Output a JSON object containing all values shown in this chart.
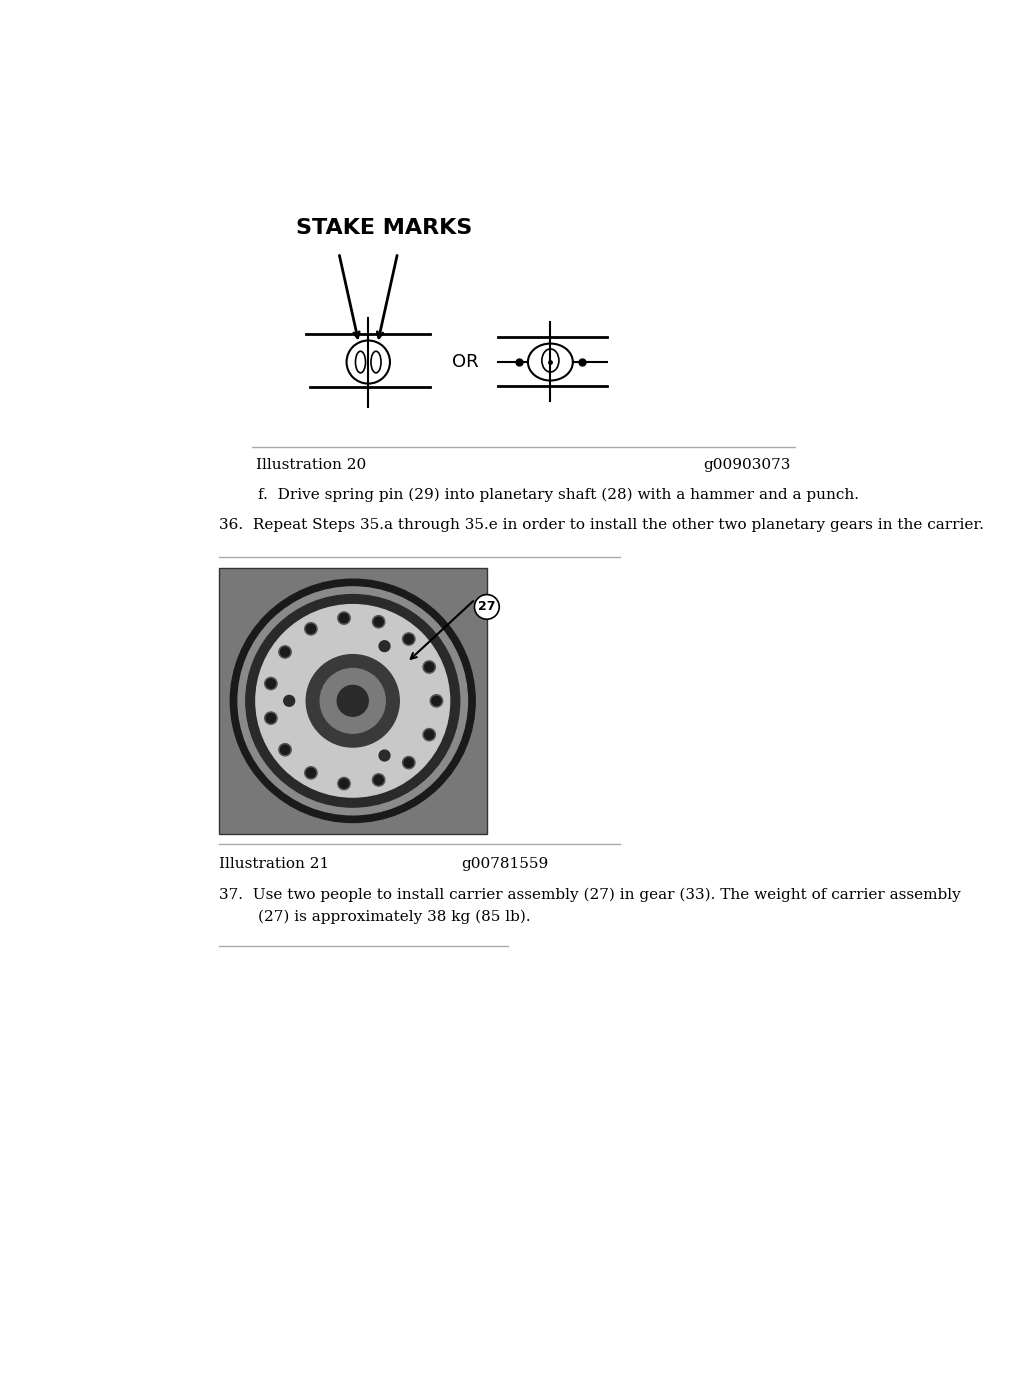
{
  "bg_color": "#ffffff",
  "stake_marks_label": "STAKE MARKS",
  "or_label": "OR",
  "ill20_left": "Illustration 20",
  "ill20_right": "g00903073",
  "ill21_left": "Illustration 21",
  "ill21_right": "g00781559",
  "step_f_text": "f.  Drive spring pin (29) into planetary shaft (28) with a hammer and a punch.",
  "step_36_text": "36.  Repeat Steps 35.a through 35.e in order to install the other two planetary gears in the carrier.",
  "step_37_line1": "37.  Use two people to install carrier assembly (27) in gear (33). The weight of carrier assembly",
  "step_37_line2": "        (27) is approximately 38 kg (85 lb).",
  "font_size_body": 11,
  "font_size_label": 11,
  "font_size_title": 14
}
